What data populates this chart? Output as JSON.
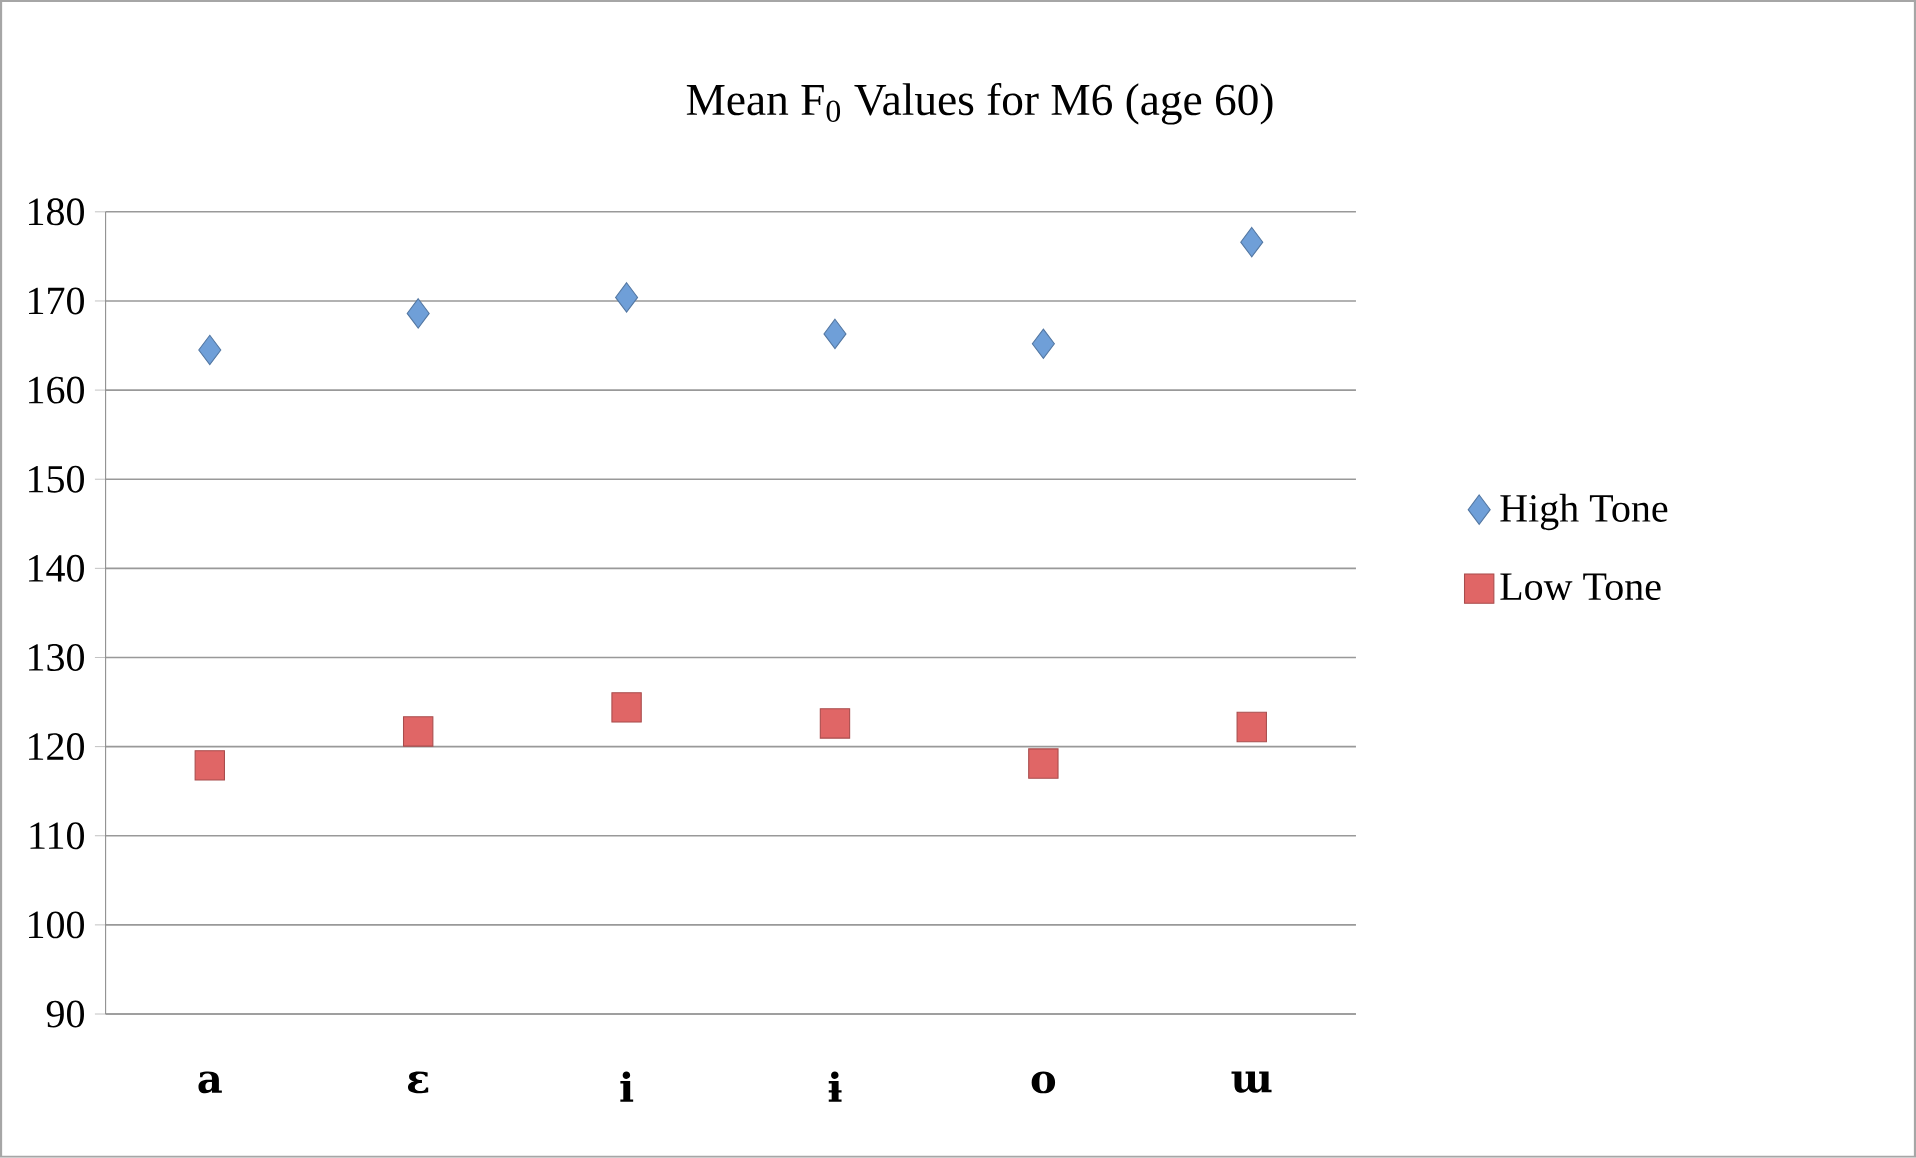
{
  "chart_data": {
    "type": "scatter",
    "title": "Mean F$_{0}$ Values for M6 (age 60)",
    "categories": [
      "a",
      "ɛ",
      "i",
      "ɨ",
      "o",
      "ɯ"
    ],
    "series": [
      {
        "name": "High Tone",
        "color": "#6f9fd8",
        "marker": "diamond",
        "values": [
          164.5,
          168.6,
          170.4,
          166.3,
          165.2,
          176.6
        ]
      },
      {
        "name": "Low Tone",
        "color": "#e06666",
        "marker": "square",
        "values": [
          117.9,
          121.7,
          124.4,
          122.6,
          118.1,
          122.2
        ]
      }
    ],
    "ylim": [
      90,
      180
    ],
    "yticks": [
      90,
      100,
      110,
      120,
      130,
      140,
      150,
      160,
      170,
      180
    ],
    "grid": "y",
    "legend": "right"
  }
}
